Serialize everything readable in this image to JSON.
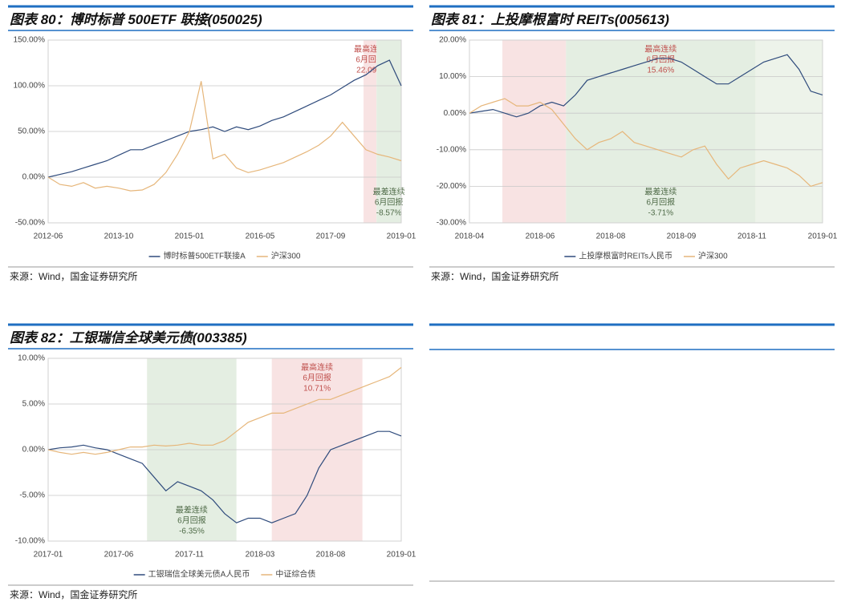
{
  "chart_data": [
    {
      "type": "line",
      "title": "图表 80：博时标普 500ETF 联接(050025)",
      "source": "来源：Wind，国金证券研究所",
      "categories": [
        "2012-06",
        null,
        null,
        null,
        null,
        null,
        "2013-10",
        null,
        null,
        null,
        null,
        null,
        "2015-01",
        null,
        null,
        null,
        null,
        null,
        "2016-05",
        null,
        null,
        null,
        null,
        null,
        "2017-09",
        null,
        null,
        null,
        null,
        null,
        "2019-01"
      ],
      "ylim": [
        -50,
        150
      ],
      "yticks": [
        {
          "value": 150,
          "label": "150.00%"
        },
        {
          "value": 100,
          "label": "100.00%"
        },
        {
          "value": 50,
          "label": "50.00%"
        },
        {
          "value": 0,
          "label": "0.00%"
        },
        {
          "value": -50,
          "label": "-50.00%"
        }
      ],
      "grid": true,
      "series": [
        {
          "name": "博时标普500ETF联接A",
          "color": "#2f4b7c",
          "values": [
            0,
            3,
            6,
            10,
            14,
            18,
            24,
            30,
            30,
            35,
            40,
            45,
            50,
            52,
            55,
            50,
            55,
            52,
            56,
            62,
            66,
            72,
            78,
            84,
            90,
            98,
            106,
            112,
            122,
            128,
            100
          ]
        },
        {
          "name": "沪深300",
          "color": "#e6b67a",
          "values": [
            0,
            -8,
            -10,
            -6,
            -12,
            -10,
            -12,
            -15,
            -14,
            -8,
            5,
            25,
            50,
            105,
            20,
            25,
            10,
            5,
            8,
            12,
            16,
            22,
            28,
            35,
            45,
            60,
            45,
            30,
            25,
            22,
            18
          ]
        }
      ],
      "highlights": [
        {
          "from": 26.8,
          "to": 27.9,
          "color": "#f8e3e3",
          "labels": [
            {
              "position": "top",
              "color": "#c0504d",
              "lines": [
                "最高连续",
                "6月回报",
                "22.09%"
              ]
            }
          ]
        },
        {
          "from": 27.9,
          "to": 30,
          "color": "#e4eee2",
          "labels": [
            {
              "position": "bottom",
              "color": "#4f6b48",
              "lines": [
                "最差连续",
                "6月回报",
                "-8.57%"
              ]
            }
          ]
        }
      ]
    },
    {
      "type": "line",
      "title": "图表 81：上投摩根富时 REITs(005613)",
      "source": "来源：Wind，国金证券研究所",
      "categories": [
        "2018-04",
        null,
        null,
        null,
        null,
        null,
        "2018-06",
        null,
        null,
        null,
        null,
        null,
        "2018-08",
        null,
        null,
        null,
        null,
        null,
        "2018-09",
        null,
        null,
        null,
        null,
        null,
        "2018-11",
        null,
        null,
        null,
        null,
        null,
        "2019-01"
      ],
      "ylim": [
        -30,
        20
      ],
      "yticks": [
        {
          "value": 20,
          "label": "20.00%"
        },
        {
          "value": 10,
          "label": "10.00%"
        },
        {
          "value": 0,
          "label": "0.00%"
        },
        {
          "value": -10,
          "label": "-10.00%"
        },
        {
          "value": -20,
          "label": "-20.00%"
        },
        {
          "value": -30,
          "label": "-30.00%"
        }
      ],
      "grid": true,
      "series": [
        {
          "name": "上投摩根富时REITs人民币",
          "color": "#2f4b7c",
          "values": [
            0,
            0.5,
            1,
            0,
            -1,
            0,
            2,
            3,
            2,
            5,
            9,
            10,
            11,
            12,
            13,
            14,
            15,
            15,
            14,
            12,
            10,
            8,
            8,
            10,
            12,
            14,
            15,
            16,
            12,
            6,
            5
          ]
        },
        {
          "name": "沪深300",
          "color": "#e6b67a",
          "values": [
            0,
            2,
            3,
            4,
            2,
            2,
            3,
            1,
            -3,
            -7,
            -10,
            -8,
            -7,
            -5,
            -8,
            -9,
            -10,
            -11,
            -12,
            -10,
            -9,
            -14,
            -18,
            -15,
            -14,
            -13,
            -14,
            -15,
            -17,
            -20,
            -19
          ]
        }
      ],
      "highlights": [
        {
          "from": 2.8,
          "to": 8.2,
          "color": "#f8e3e3",
          "labels": []
        },
        {
          "from": 8.2,
          "to": 24.3,
          "color": "#e4eee2",
          "labels": [
            {
              "position": "top",
              "color": "#c0504d",
              "lines": [
                "最高连续",
                "6月回报",
                "15.46%"
              ]
            },
            {
              "position": "bottom",
              "color": "#4f6b48",
              "lines": [
                "最差连续",
                "6月回报",
                "-3.71%"
              ]
            }
          ]
        },
        {
          "from": 24.3,
          "to": 30,
          "color": "#edf3ea",
          "labels": []
        }
      ]
    },
    {
      "type": "line",
      "title": "图表 82：工银瑞信全球美元债(003385)",
      "source": "来源：Wind，国金证券研究所",
      "categories": [
        "2017-01",
        null,
        null,
        null,
        null,
        null,
        "2017-06",
        null,
        null,
        null,
        null,
        null,
        "2017-11",
        null,
        null,
        null,
        null,
        null,
        "2018-03",
        null,
        null,
        null,
        null,
        null,
        "2018-08",
        null,
        null,
        null,
        null,
        null,
        "2019-01"
      ],
      "ylim": [
        -10,
        10
      ],
      "yticks": [
        {
          "value": 10,
          "label": "10.00%"
        },
        {
          "value": 5,
          "label": "5.00%"
        },
        {
          "value": 0,
          "label": "0.00%"
        },
        {
          "value": -5,
          "label": "-5.00%"
        },
        {
          "value": -10,
          "label": "-10.00%"
        }
      ],
      "grid": true,
      "series": [
        {
          "name": "工银瑞信全球美元债A人民币",
          "color": "#2f4b7c",
          "values": [
            0,
            0.2,
            0.3,
            0.5,
            0.2,
            0,
            -0.5,
            -1,
            -1.5,
            -3,
            -4.5,
            -3.5,
            -4,
            -4.5,
            -5.5,
            -7,
            -8,
            -7.5,
            -7.5,
            -8,
            -7.5,
            -7,
            -5,
            -2,
            0,
            0.5,
            1,
            1.5,
            2,
            2,
            1.5
          ]
        },
        {
          "name": "中证综合债",
          "color": "#e6b67a",
          "values": [
            0,
            -0.3,
            -0.5,
            -0.3,
            -0.5,
            -0.3,
            0,
            0.3,
            0.3,
            0.5,
            0.4,
            0.5,
            0.7,
            0.5,
            0.5,
            1,
            2,
            3,
            3.5,
            4,
            4,
            4.5,
            5,
            5.5,
            5.5,
            6,
            6.5,
            7,
            7.5,
            8,
            9
          ]
        }
      ],
      "highlights": [
        {
          "from": 8.4,
          "to": 16,
          "color": "#e4eee2",
          "labels": [
            {
              "position": "bottom",
              "color": "#4f6b48",
              "lines": [
                "最差连续",
                "6月回报",
                "-6.35%"
              ]
            }
          ]
        },
        {
          "from": 19,
          "to": 26.7,
          "color": "#f8e3e3",
          "labels": [
            {
              "position": "top",
              "color": "#c0504d",
              "lines": [
                "最高连续",
                "6月回报",
                "10.71%"
              ]
            }
          ]
        }
      ]
    }
  ]
}
